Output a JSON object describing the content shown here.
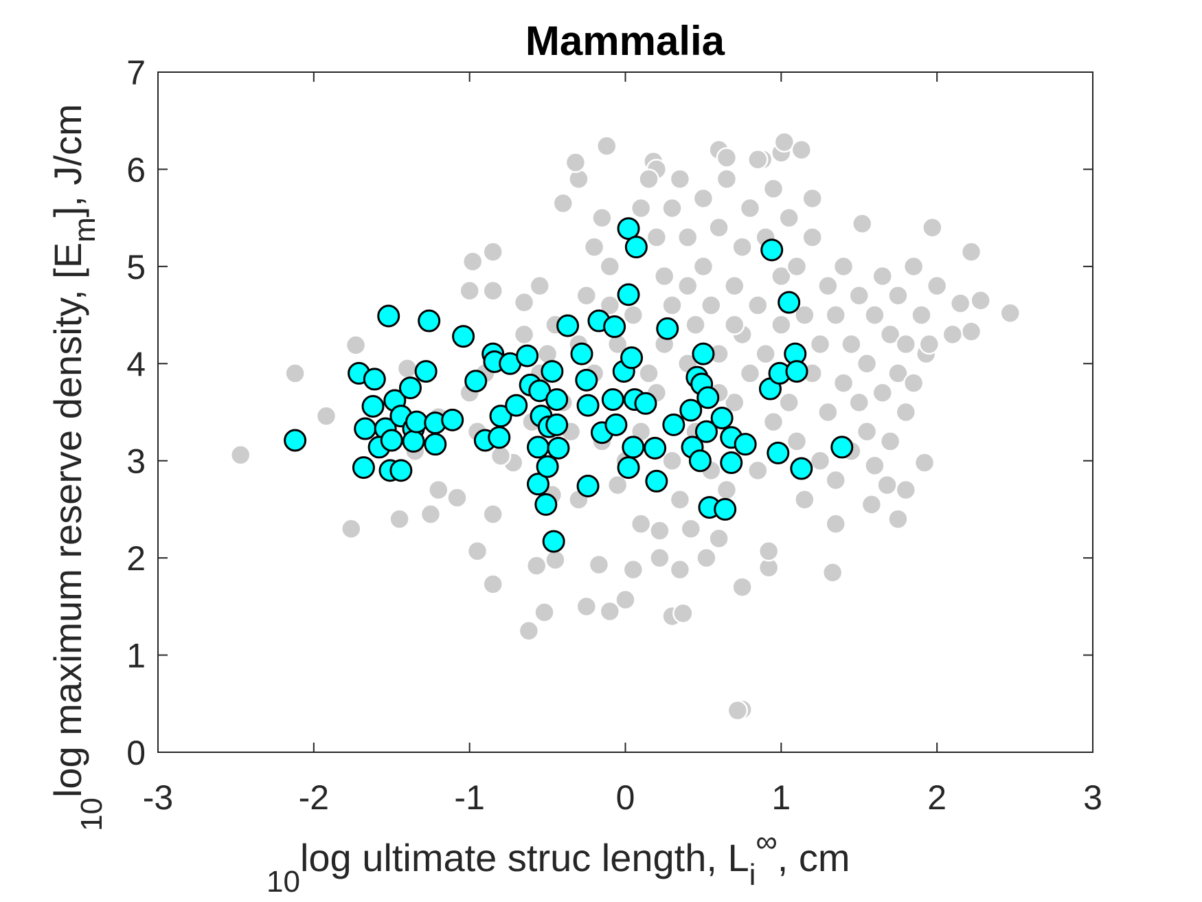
{
  "chart_data": {
    "type": "scatter",
    "title": "Mammalia",
    "xlabel": {
      "prefix": "10",
      "text": "log ultimate struc length, L",
      "sub": "i",
      "sup": "∞",
      "suffix": ", cm"
    },
    "ylabel": {
      "prefix": "10",
      "text": "log maximum reserve density, [E",
      "sub": "m",
      "suffix": "], J/cm"
    },
    "xlim": [
      -3,
      3
    ],
    "xticks": [
      -3,
      -2,
      -1,
      0,
      1,
      2,
      3
    ],
    "ylim": [
      0,
      7
    ],
    "yticks": [
      0,
      1,
      2,
      3,
      4,
      5,
      6,
      7
    ],
    "series": [
      {
        "color": "#cccccc",
        "edgecolor": "#ffffff",
        "x": [
          -2.47,
          -2.12,
          -1.92,
          -1.76,
          -1.73,
          -1.45,
          -1.25,
          -1.2,
          -1.08,
          -1.0,
          -0.98,
          -0.85,
          -0.85,
          -0.95,
          -0.85,
          -0.85,
          -0.72,
          -0.65,
          -0.62,
          -0.57,
          -0.52,
          -0.45,
          -0.47,
          -0.4,
          -0.3,
          -0.32,
          -0.12,
          -0.25,
          -0.17,
          -0.1,
          0.0,
          0.05,
          0.35,
          0.3,
          0.37,
          0.75,
          0.72,
          0.75,
          0.92,
          0.92,
          1.0,
          1.02,
          1.13,
          0.88,
          0.6,
          0.65,
          0.18,
          0.2,
          1.35,
          1.33,
          1.58,
          1.68,
          1.75,
          1.8,
          1.92,
          2.22,
          2.22,
          2.28,
          2.47,
          2.1,
          2.15,
          1.97,
          1.93,
          1.52,
          0.22,
          0.22,
          0.6,
          0.52,
          0.42,
          0.1,
          -0.3,
          -0.05,
          -1.45,
          -1.4,
          -1.35,
          -1.2,
          -0.95,
          -1.0,
          -0.9,
          -0.8,
          -0.6,
          -0.55,
          -0.65,
          -0.5,
          -0.4,
          -0.35,
          -0.3,
          -0.25,
          -0.2,
          -0.1,
          -0.1,
          -0.05,
          0.05,
          0.1,
          0.15,
          0.2,
          0.25,
          0.3,
          0.3,
          0.35,
          0.4,
          0.4,
          0.45,
          0.5,
          0.5,
          0.55,
          0.6,
          0.6,
          0.65,
          0.7,
          0.7,
          0.75,
          0.75,
          0.8,
          0.8,
          0.85,
          0.85,
          0.9,
          0.9,
          0.95,
          0.95,
          1.0,
          1.0,
          1.05,
          1.05,
          1.1,
          1.1,
          1.15,
          1.15,
          1.2,
          1.2,
          1.25,
          1.25,
          1.3,
          1.3,
          1.35,
          1.35,
          1.4,
          1.4,
          1.45,
          1.45,
          1.5,
          1.5,
          1.55,
          1.55,
          1.6,
          1.6,
          1.65,
          1.65,
          1.7,
          1.7,
          1.75,
          1.75,
          1.8,
          1.8,
          1.85,
          1.85,
          1.9,
          1.95,
          2.0,
          0.0,
          0.1,
          0.2,
          0.3,
          0.35,
          0.45,
          0.55,
          0.6,
          0.65,
          0.7,
          0.4,
          0.25,
          0.15,
          -0.15,
          -0.2,
          -0.45,
          -0.55,
          -0.15,
          1.2,
          0.85
        ],
        "values": [
          3.06,
          3.9,
          3.46,
          2.3,
          4.19,
          2.4,
          2.45,
          2.7,
          2.62,
          4.75,
          5.05,
          5.15,
          4.75,
          2.07,
          1.73,
          2.45,
          2.98,
          4.63,
          1.25,
          1.92,
          1.44,
          1.98,
          2.65,
          5.65,
          5.9,
          6.07,
          6.24,
          1.5,
          1.93,
          1.45,
          1.57,
          1.88,
          1.88,
          1.4,
          1.43,
          0.44,
          0.43,
          1.7,
          1.9,
          2.07,
          6.17,
          6.28,
          6.2,
          6.1,
          6.2,
          6.12,
          6.08,
          6.0,
          2.35,
          1.85,
          2.55,
          2.75,
          2.4,
          2.7,
          2.98,
          4.33,
          5.15,
          4.65,
          4.52,
          4.3,
          4.62,
          5.4,
          4.1,
          5.44,
          2.28,
          2.0,
          2.2,
          2.0,
          2.3,
          2.35,
          2.6,
          2.75,
          3.45,
          3.95,
          3.1,
          3.45,
          3.3,
          3.7,
          3.9,
          3.05,
          3.4,
          3.9,
          4.3,
          4.1,
          3.6,
          3.3,
          4.2,
          4.7,
          5.2,
          5.0,
          4.6,
          4.2,
          4.5,
          5.6,
          5.9,
          5.3,
          4.9,
          4.6,
          5.6,
          5.9,
          5.3,
          4.8,
          4.4,
          5.0,
          5.7,
          4.6,
          5.4,
          4.1,
          5.9,
          4.8,
          3.6,
          4.3,
          5.2,
          5.6,
          3.9,
          4.6,
          2.9,
          5.3,
          4.1,
          5.8,
          3.4,
          4.9,
          4.4,
          5.5,
          3.6,
          5.0,
          3.2,
          4.5,
          2.6,
          5.3,
          3.9,
          4.2,
          3.0,
          4.8,
          3.5,
          4.5,
          2.8,
          5.0,
          3.8,
          4.2,
          3.1,
          4.7,
          3.6,
          4.0,
          3.3,
          4.5,
          2.95,
          4.9,
          3.7,
          4.3,
          3.2,
          4.7,
          3.9,
          4.2,
          3.5,
          5.0,
          3.8,
          4.5,
          4.2,
          4.8,
          3.0,
          3.3,
          3.7,
          3.0,
          2.6,
          3.3,
          2.9,
          3.7,
          2.7,
          4.4,
          4.0,
          4.2,
          3.9,
          3.2,
          3.9,
          4.4,
          4.8,
          5.5,
          5.7,
          6.1
        ]
      },
      {
        "color": "#00ffff",
        "edgecolor": "#000000",
        "x": [
          -2.12,
          -1.71,
          -1.67,
          -1.68,
          -1.61,
          -1.62,
          -1.52,
          -1.54,
          -1.58,
          -1.5,
          -1.51,
          -1.48,
          -1.44,
          -1.44,
          -1.38,
          -1.36,
          -1.36,
          -1.34,
          -1.28,
          -1.26,
          -1.22,
          -1.22,
          -1.11,
          -1.04,
          -0.96,
          -0.9,
          -0.85,
          -0.84,
          -0.81,
          -0.8,
          -0.74,
          -0.7,
          -0.63,
          -0.61,
          -0.56,
          -0.56,
          -0.55,
          -0.54,
          -0.51,
          -0.5,
          -0.49,
          -0.47,
          -0.46,
          -0.44,
          -0.44,
          -0.43,
          -0.37,
          -0.28,
          -0.25,
          -0.24,
          -0.24,
          -0.17,
          -0.15,
          -0.08,
          -0.07,
          -0.06,
          -0.01,
          0.02,
          0.02,
          0.02,
          0.04,
          0.05,
          0.07,
          0.06,
          0.13,
          0.19,
          0.2,
          0.27,
          0.31,
          0.42,
          0.43,
          0.46,
          0.48,
          0.49,
          0.5,
          0.52,
          0.53,
          0.54,
          0.62,
          0.64,
          0.68,
          0.68,
          0.77,
          0.94,
          0.93,
          0.98,
          0.99,
          1.05,
          1.09,
          1.1,
          1.13,
          1.39
        ],
        "values": [
          3.21,
          3.9,
          3.33,
          2.93,
          3.84,
          3.56,
          4.49,
          3.33,
          3.14,
          3.21,
          2.9,
          3.62,
          3.46,
          2.9,
          3.75,
          3.33,
          3.2,
          3.4,
          3.92,
          4.44,
          3.39,
          3.17,
          3.42,
          4.28,
          3.82,
          3.21,
          4.1,
          4.02,
          3.24,
          3.46,
          4.0,
          3.57,
          4.08,
          3.78,
          2.76,
          3.14,
          3.72,
          3.46,
          2.55,
          2.94,
          3.35,
          3.92,
          2.17,
          3.63,
          3.37,
          3.13,
          4.39,
          4.1,
          3.83,
          3.57,
          2.74,
          4.44,
          3.29,
          3.63,
          4.38,
          3.37,
          3.92,
          2.93,
          5.39,
          4.71,
          4.06,
          3.14,
          5.2,
          3.63,
          3.59,
          3.13,
          2.79,
          4.36,
          3.37,
          3.52,
          3.14,
          3.86,
          3.0,
          3.79,
          4.1,
          3.3,
          3.65,
          2.52,
          3.44,
          2.5,
          2.98,
          3.24,
          3.17,
          5.17,
          3.74,
          3.08,
          3.9,
          4.63,
          4.1,
          3.92,
          2.92,
          3.14
        ]
      }
    ]
  }
}
